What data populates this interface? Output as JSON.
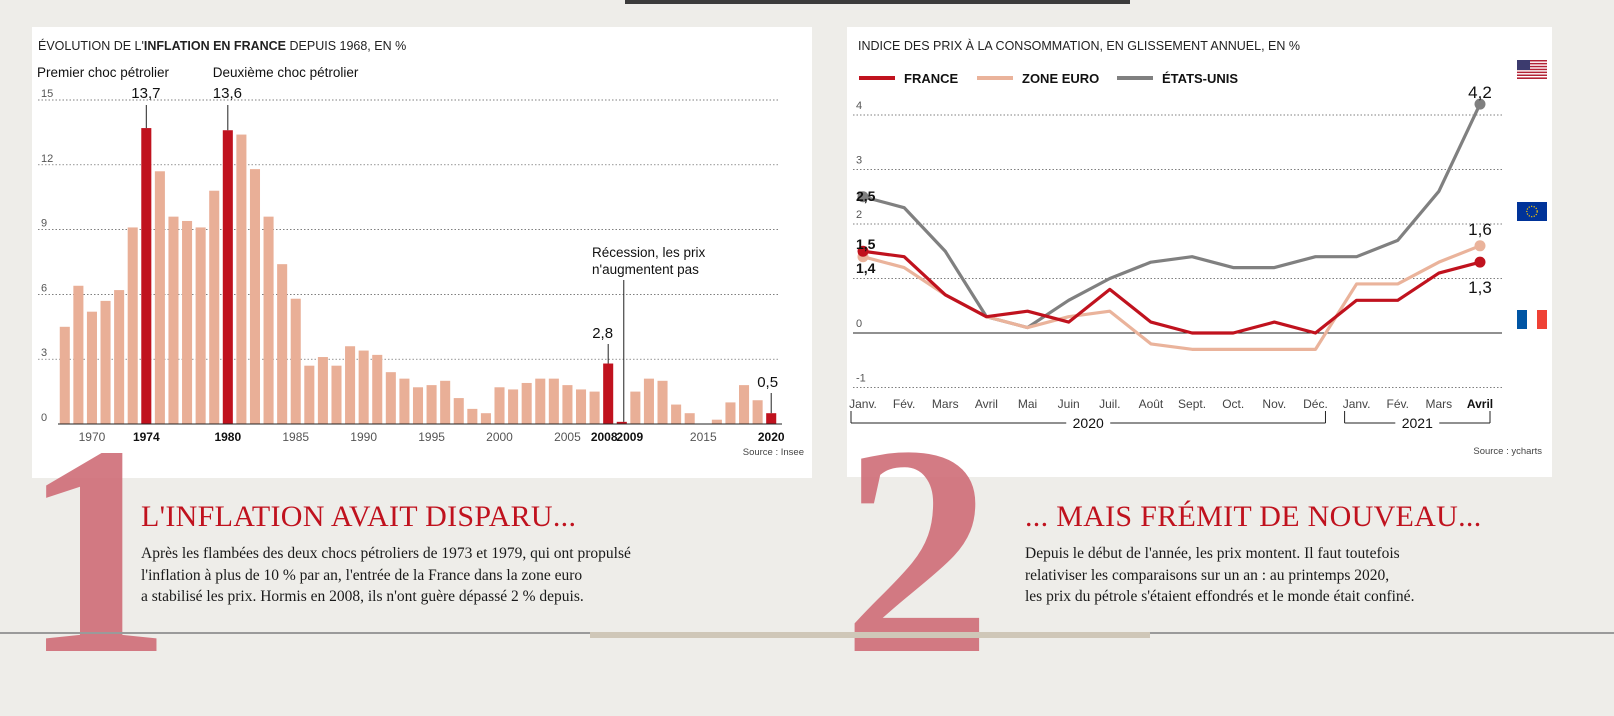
{
  "left": {
    "title_prefix": "ÉVOLUTION DE L'",
    "title_bold": "INFLATION EN FRANCE",
    "title_suffix": " DEPUIS 1968, EN %",
    "source": "Source : Insee",
    "big_number": "1",
    "headline": "L'INFLATION AVAIT DISPARU...",
    "body_lines": [
      "Après les flambées des deux chocs pétroliers de 1973 et 1979, qui ont propulsé",
      "l'inflation à plus de 10 % par an, l'entrée de la France dans la zone euro",
      "a stabilisé les prix. Hormis en 2008, ils n'ont guère dépassé 2 % depuis."
    ]
  },
  "right": {
    "title": "INDICE DES PRIX À LA CONSOMMATION, EN GLISSEMENT ANNUEL, EN %",
    "source": "Source : ycharts",
    "big_number": "2",
    "headline": "... MAIS FRÉMIT DE NOUVEAU...",
    "body_lines": [
      "Depuis le début de l'année, les prix montent. Il faut toutefois",
      "relativiser les comparaisons sur un an : au printemps 2020,",
      "les prix du pétrole s'étaient effondrés et le monde était confiné."
    ],
    "flags": [
      "us-flag-icon",
      "eu-flag-icon",
      "fr-flag-icon"
    ]
  },
  "chart_data": [
    {
      "type": "bar",
      "title": "ÉVOLUTION DE L'INFLATION EN FRANCE DEPUIS 1968, EN %",
      "ylim": [
        0,
        15
      ],
      "yticks": [
        0,
        3,
        6,
        9,
        12,
        15
      ],
      "x_tick_labels": [
        "1970",
        "1974",
        "1980",
        "1985",
        "1990",
        "1995",
        "2000",
        "2005",
        "2008",
        "2009",
        "2015",
        "2020"
      ],
      "bold_ticks": [
        "1974",
        "1980",
        "2008",
        "2009",
        "2020"
      ],
      "categories": [
        1968,
        1969,
        1970,
        1971,
        1972,
        1973,
        1974,
        1975,
        1976,
        1977,
        1978,
        1979,
        1980,
        1981,
        1982,
        1983,
        1984,
        1985,
        1986,
        1987,
        1988,
        1989,
        1990,
        1991,
        1992,
        1993,
        1994,
        1995,
        1996,
        1997,
        1998,
        1999,
        2000,
        2001,
        2002,
        2003,
        2004,
        2005,
        2006,
        2007,
        2008,
        2009,
        2010,
        2011,
        2012,
        2013,
        2014,
        2015,
        2016,
        2017,
        2018,
        2019,
        2020
      ],
      "values": [
        4.5,
        6.4,
        5.2,
        5.7,
        6.2,
        9.1,
        13.7,
        11.7,
        9.6,
        9.4,
        9.1,
        10.8,
        13.6,
        13.4,
        11.8,
        9.6,
        7.4,
        5.8,
        2.7,
        3.1,
        2.7,
        3.6,
        3.4,
        3.2,
        2.4,
        2.1,
        1.7,
        1.8,
        2.0,
        1.2,
        0.7,
        0.5,
        1.7,
        1.6,
        1.9,
        2.1,
        2.1,
        1.8,
        1.6,
        1.5,
        2.8,
        0.1,
        1.5,
        2.1,
        2.0,
        0.9,
        0.5,
        0.0,
        0.2,
        1.0,
        1.8,
        1.1,
        0.5
      ],
      "highlight_colors": {
        "normal": "#e9af97",
        "highlight": "#c0121e"
      },
      "highlight_years": [
        1974,
        1980,
        2008,
        2009,
        2020
      ],
      "annotations": [
        {
          "year": 1974,
          "label": "Premier choc pétrolier",
          "value_label": "13,7"
        },
        {
          "year": 1980,
          "label": "Deuxième choc pétrolier",
          "value_label": "13,6"
        },
        {
          "year": 2008,
          "value_label": "2,8"
        },
        {
          "year": 2009,
          "label_lines": [
            "Récession, les prix",
            "n'augmentent pas"
          ]
        },
        {
          "year": 2020,
          "value_label": "0,5"
        }
      ]
    },
    {
      "type": "line",
      "title": "INDICE DES PRIX À LA CONSOMMATION, EN GLISSEMENT ANNUEL, EN %",
      "ylim": [
        -1,
        4.2
      ],
      "yticks": [
        -1,
        0,
        2,
        3,
        4
      ],
      "ytick_labels": [
        "-1",
        "0",
        "2",
        "3",
        "4"
      ],
      "categories": [
        "Janv.",
        "Fév.",
        "Mars",
        "Avril",
        "Mai",
        "Juin",
        "Juil.",
        "Août",
        "Sept.",
        "Oct.",
        "Nov.",
        "Déc.",
        "Janv.",
        "Fév.",
        "Mars",
        "Avril"
      ],
      "bold_category_index": 15,
      "year_groups": [
        {
          "label": "2020",
          "from": 0,
          "to": 11
        },
        {
          "label": "2021",
          "from": 12,
          "to": 15
        }
      ],
      "series": [
        {
          "name": "FRANCE",
          "color": "#c0121e",
          "values": [
            1.5,
            1.4,
            0.7,
            0.3,
            0.4,
            0.2,
            0.8,
            0.2,
            0.0,
            0.0,
            0.2,
            0.0,
            0.6,
            0.6,
            1.1,
            1.3
          ],
          "start_label": "1,5",
          "end_label": "1,3"
        },
        {
          "name": "ZONE EURO",
          "color": "#eab39b",
          "values": [
            1.4,
            1.2,
            0.7,
            0.3,
            0.1,
            0.3,
            0.4,
            -0.2,
            -0.3,
            -0.3,
            -0.3,
            -0.3,
            0.9,
            0.9,
            1.3,
            1.6
          ],
          "start_label": "1,4",
          "end_label": "1,6"
        },
        {
          "name": "ÉTATS-UNIS",
          "color": "#808080",
          "values": [
            2.5,
            2.3,
            1.5,
            0.3,
            0.1,
            0.6,
            1.0,
            1.3,
            1.4,
            1.2,
            1.2,
            1.4,
            1.4,
            1.7,
            2.6,
            4.2
          ],
          "start_label": "2,5",
          "end_label": "4,2"
        }
      ]
    }
  ]
}
